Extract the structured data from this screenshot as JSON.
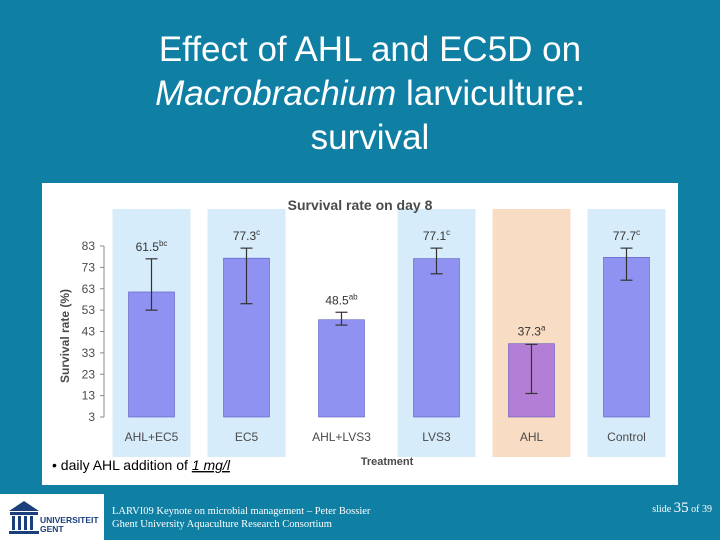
{
  "slide": {
    "title_line1": "Effect of AHL  and EC5D on",
    "title_line2_italic": "Macrobrachium",
    "title_line2_rest": " larviculture:",
    "title_line3": "survival"
  },
  "chart_data": {
    "type": "bar",
    "title": "Survival rate on day 8",
    "xlabel": "Treatment",
    "ylabel": "Survival rate (%)",
    "ylim": [
      3,
      83
    ],
    "yticks": [
      "83",
      "73",
      "63",
      "53",
      "43",
      "33",
      "23",
      "13",
      "3"
    ],
    "categories": [
      "AHL+EC5",
      "EC5",
      "AHL+LVS3",
      "LVS3",
      "AHL",
      "Control"
    ],
    "values": [
      61.5,
      77.3,
      48.5,
      77.1,
      37.3,
      77.7
    ],
    "label_values": [
      "61.5",
      "77.3",
      "48.5",
      "77.1",
      "37.3",
      "77.7"
    ],
    "significance": [
      "bc",
      "c",
      "ab",
      "c",
      "a",
      "c"
    ],
    "error_low": [
      53,
      56,
      46,
      70,
      14,
      67
    ],
    "error_high": [
      77,
      82,
      52,
      82,
      37,
      82
    ],
    "bar_colors": [
      "#8f92f0",
      "#8f92f0",
      "#8f92f0",
      "#8f92f0",
      "#b37fd6",
      "#8f92f0"
    ],
    "highlight_colors": {
      "AHL+EC5": "#d6ecfa",
      "EC5": "#d6ecfa",
      "LVS3": "#d6ecfa",
      "Control": "#d6ecfa",
      "AHL": "#f9dcc4"
    },
    "axis_text_color": "#4a4a4a",
    "note": "• daily AHL addition of ",
    "note_emph": "1 mg/l"
  },
  "footer": {
    "line1": "LARVI09 Keynote on microbial management  – Peter Bossier",
    "line2": "Ghent University Aquaculture Research Consortium",
    "slide_prefix": "slide ",
    "slide_number": "35",
    "slide_suffix": " of 39"
  },
  "logo": {
    "name_line1": "UNIVERSITEIT",
    "name_line2": "GENT"
  }
}
